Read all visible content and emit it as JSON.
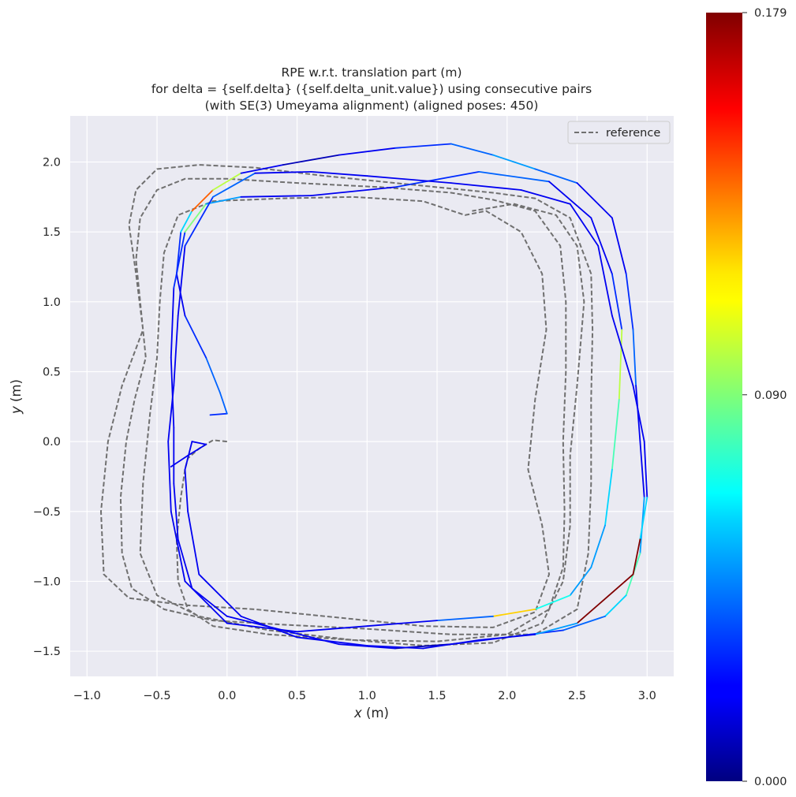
{
  "chart_data": {
    "type": "line",
    "title_lines": [
      "RPE w.r.t. translation part (m)",
      "for delta = {self.delta} ({self.delta_unit.value}) using consecutive pairs",
      "(with SE(3) Umeyama alignment) (aligned poses: 450)"
    ],
    "xlabel_var": "x",
    "xlabel_unit": " (m)",
    "ylabel_var": "y",
    "ylabel_unit": " (m)",
    "xlim": [
      -1.12,
      3.19
    ],
    "ylim": [
      -1.68,
      2.33
    ],
    "xticks": [
      -1.0,
      -0.5,
      0.0,
      0.5,
      1.0,
      1.5,
      2.0,
      2.5,
      3.0
    ],
    "yticks": [
      -1.5,
      -1.0,
      -0.5,
      0.0,
      0.5,
      1.0,
      1.5,
      2.0
    ],
    "xtick_labels": [
      "−1.0",
      "−0.5",
      "0.0",
      "0.5",
      "1.0",
      "1.5",
      "2.0",
      "2.5",
      "3.0"
    ],
    "ytick_labels": [
      "−1.5",
      "−1.0",
      "−0.5",
      "0.0",
      "0.5",
      "1.0",
      "1.5",
      "2.0"
    ],
    "grid": true,
    "legend": {
      "position": "top-right",
      "entries": [
        "reference"
      ]
    },
    "colorbar": {
      "colormap": "jet",
      "min": 0.0,
      "max": 0.179,
      "tick_values": [
        0.0,
        0.09,
        0.179
      ],
      "tick_labels": [
        "0.000",
        "0.090",
        "0.179"
      ]
    },
    "series": [
      {
        "name": "reference",
        "style": "dashed",
        "color": "#707070",
        "points": [
          [
            0.0,
            0.0
          ],
          [
            -0.1,
            0.01
          ],
          [
            -0.2,
            -0.05
          ],
          [
            -0.28,
            -0.12
          ],
          [
            -0.3,
            -0.2
          ],
          [
            -0.33,
            -0.4
          ],
          [
            -0.36,
            -0.7
          ],
          [
            -0.35,
            -1.0
          ],
          [
            -0.28,
            -1.2
          ],
          [
            -0.1,
            -1.32
          ],
          [
            0.3,
            -1.38
          ],
          [
            0.9,
            -1.42
          ],
          [
            1.5,
            -1.43
          ],
          [
            2.0,
            -1.38
          ],
          [
            2.3,
            -1.2
          ],
          [
            2.4,
            -0.9
          ],
          [
            2.41,
            -0.5
          ],
          [
            2.4,
            0.0
          ],
          [
            2.42,
            0.5
          ],
          [
            2.42,
            1.0
          ],
          [
            2.38,
            1.4
          ],
          [
            2.2,
            1.65
          ],
          [
            1.9,
            1.73
          ],
          [
            1.6,
            1.78
          ],
          [
            1.1,
            1.82
          ],
          [
            0.5,
            1.85
          ],
          [
            0.0,
            1.88
          ],
          [
            -0.3,
            1.88
          ],
          [
            -0.5,
            1.8
          ],
          [
            -0.62,
            1.6
          ],
          [
            -0.65,
            1.3
          ],
          [
            -0.62,
            1.0
          ],
          [
            -0.58,
            0.6
          ],
          [
            -0.66,
            0.3
          ],
          [
            -0.72,
            0.0
          ],
          [
            -0.76,
            -0.4
          ],
          [
            -0.75,
            -0.8
          ],
          [
            -0.68,
            -1.05
          ],
          [
            -0.45,
            -1.2
          ],
          [
            -0.1,
            -1.28
          ],
          [
            0.4,
            -1.31
          ],
          [
            1.0,
            -1.34
          ],
          [
            1.6,
            -1.38
          ],
          [
            2.2,
            -1.38
          ],
          [
            2.5,
            -1.2
          ],
          [
            2.58,
            -0.8
          ],
          [
            2.6,
            -0.3
          ],
          [
            2.6,
            0.3
          ],
          [
            2.61,
            0.8
          ],
          [
            2.6,
            1.2
          ],
          [
            2.45,
            1.6
          ],
          [
            2.2,
            1.74
          ],
          [
            1.9,
            1.78
          ],
          [
            1.3,
            1.84
          ],
          [
            0.7,
            1.9
          ],
          [
            0.2,
            1.96
          ],
          [
            -0.2,
            1.98
          ],
          [
            -0.5,
            1.95
          ],
          [
            -0.65,
            1.8
          ],
          [
            -0.7,
            1.55
          ],
          [
            -0.65,
            1.2
          ],
          [
            -0.6,
            0.8
          ],
          [
            -0.75,
            0.4
          ],
          [
            -0.85,
            0.0
          ],
          [
            -0.9,
            -0.5
          ],
          [
            -0.88,
            -0.95
          ],
          [
            -0.7,
            -1.12
          ],
          [
            -0.3,
            -1.17
          ],
          [
            0.2,
            -1.2
          ],
          [
            0.8,
            -1.26
          ],
          [
            1.4,
            -1.32
          ],
          [
            1.9,
            -1.33
          ],
          [
            2.2,
            -1.22
          ],
          [
            2.3,
            -0.95
          ],
          [
            2.25,
            -0.6
          ],
          [
            2.15,
            -0.2
          ],
          [
            2.2,
            0.3
          ],
          [
            2.28,
            0.8
          ],
          [
            2.25,
            1.2
          ],
          [
            2.1,
            1.5
          ],
          [
            1.85,
            1.65
          ],
          [
            1.7,
            1.62
          ],
          [
            1.4,
            1.72
          ],
          [
            0.9,
            1.75
          ],
          [
            0.4,
            1.74
          ],
          [
            -0.1,
            1.72
          ],
          [
            -0.35,
            1.62
          ],
          [
            -0.45,
            1.35
          ],
          [
            -0.48,
            1.0
          ],
          [
            -0.5,
            0.6
          ],
          [
            -0.55,
            0.2
          ],
          [
            -0.6,
            -0.3
          ],
          [
            -0.62,
            -0.8
          ],
          [
            -0.5,
            -1.1
          ],
          [
            -0.2,
            -1.25
          ],
          [
            0.3,
            -1.35
          ],
          [
            0.9,
            -1.42
          ],
          [
            1.4,
            -1.46
          ],
          [
            1.9,
            -1.44
          ],
          [
            2.25,
            -1.3
          ],
          [
            2.4,
            -1.0
          ],
          [
            2.45,
            -0.6
          ],
          [
            2.45,
            -0.1
          ],
          [
            2.5,
            0.4
          ],
          [
            2.55,
            1.0
          ],
          [
            2.5,
            1.4
          ],
          [
            2.35,
            1.62
          ],
          [
            2.05,
            1.7
          ],
          [
            1.75,
            1.65
          ]
        ]
      },
      {
        "name": "",
        "style": "colormap",
        "color_by": "error",
        "points": [
          [
            -0.12,
            0.19,
            0.02
          ],
          [
            0.0,
            0.2,
            0.03
          ],
          [
            -0.05,
            0.35,
            0.04
          ],
          [
            -0.15,
            0.6,
            0.04
          ],
          [
            -0.3,
            0.9,
            0.03
          ],
          [
            -0.36,
            1.2,
            0.02
          ],
          [
            -0.33,
            1.5,
            0.03
          ],
          [
            -0.25,
            1.65,
            0.06
          ],
          [
            -0.1,
            1.8,
            0.14
          ],
          [
            0.1,
            1.92,
            0.1
          ],
          [
            0.4,
            1.98,
            0.02
          ],
          [
            0.8,
            2.05,
            0.01
          ],
          [
            1.2,
            2.1,
            0.02
          ],
          [
            1.6,
            2.13,
            0.03
          ],
          [
            1.9,
            2.05,
            0.04
          ],
          [
            2.2,
            1.95,
            0.05
          ],
          [
            2.5,
            1.85,
            0.04
          ],
          [
            2.75,
            1.6,
            0.02
          ],
          [
            2.85,
            1.2,
            0.02
          ],
          [
            2.9,
            0.8,
            0.03
          ],
          [
            2.92,
            0.4,
            0.04
          ],
          [
            2.95,
            0.0,
            0.02
          ],
          [
            2.98,
            -0.4,
            0.02
          ],
          [
            2.95,
            -0.8,
            0.05
          ],
          [
            2.85,
            -1.1,
            0.08
          ],
          [
            2.7,
            -1.25,
            0.06
          ],
          [
            2.4,
            -1.35,
            0.04
          ],
          [
            2.0,
            -1.4,
            0.03
          ],
          [
            1.6,
            -1.45,
            0.02
          ],
          [
            1.2,
            -1.48,
            0.01
          ],
          [
            0.8,
            -1.45,
            0.02
          ],
          [
            0.4,
            -1.35,
            0.02
          ],
          [
            0.0,
            -1.25,
            0.02
          ],
          [
            -0.25,
            -1.05,
            0.02
          ],
          [
            -0.35,
            -0.7,
            0.02
          ],
          [
            -0.38,
            -0.3,
            0.02
          ],
          [
            -0.38,
            0.1,
            0.02
          ],
          [
            -0.4,
            0.6,
            0.02
          ],
          [
            -0.38,
            1.1,
            0.02
          ],
          [
            -0.3,
            1.5,
            0.03
          ],
          [
            -0.15,
            1.7,
            0.09
          ],
          [
            0.1,
            1.75,
            0.05
          ],
          [
            0.6,
            1.76,
            0.02
          ],
          [
            1.2,
            1.82,
            0.02
          ],
          [
            1.8,
            1.93,
            0.03
          ],
          [
            2.3,
            1.86,
            0.04
          ],
          [
            2.6,
            1.6,
            0.02
          ],
          [
            2.75,
            1.2,
            0.02
          ],
          [
            2.82,
            0.8,
            0.03
          ],
          [
            2.8,
            0.3,
            0.1
          ],
          [
            2.75,
            -0.2,
            0.08
          ],
          [
            2.7,
            -0.6,
            0.06
          ],
          [
            2.6,
            -0.9,
            0.05
          ],
          [
            2.45,
            -1.1,
            0.05
          ],
          [
            2.2,
            -1.2,
            0.07
          ],
          [
            1.9,
            -1.25,
            0.12
          ],
          [
            1.5,
            -1.28,
            0.04
          ],
          [
            1.0,
            -1.32,
            0.02
          ],
          [
            0.5,
            -1.36,
            0.02
          ],
          [
            0.0,
            -1.3,
            0.02
          ],
          [
            -0.3,
            -1.0,
            0.02
          ],
          [
            -0.4,
            -0.5,
            0.02
          ],
          [
            -0.42,
            0.0,
            0.02
          ],
          [
            -0.38,
            0.4,
            0.02
          ],
          [
            -0.35,
            0.9,
            0.02
          ],
          [
            -0.3,
            1.4,
            0.02
          ],
          [
            -0.1,
            1.75,
            0.03
          ],
          [
            0.2,
            1.92,
            0.04
          ],
          [
            0.6,
            1.93,
            0.02
          ],
          [
            1.0,
            1.9,
            0.02
          ],
          [
            1.6,
            1.85,
            0.02
          ],
          [
            2.1,
            1.8,
            0.02
          ],
          [
            2.45,
            1.7,
            0.02
          ],
          [
            2.65,
            1.4,
            0.02
          ],
          [
            2.75,
            0.9,
            0.02
          ],
          [
            2.9,
            0.4,
            0.02
          ],
          [
            2.98,
            0.0,
            0.02
          ],
          [
            3.0,
            -0.4,
            0.02
          ],
          [
            2.95,
            -0.7,
            0.06
          ],
          [
            2.9,
            -0.95,
            0.179
          ],
          [
            2.5,
            -1.3,
            0.179
          ],
          [
            2.2,
            -1.38,
            0.05
          ],
          [
            1.8,
            -1.42,
            0.02
          ],
          [
            1.4,
            -1.48,
            0.02
          ],
          [
            1.0,
            -1.46,
            0.02
          ],
          [
            0.5,
            -1.4,
            0.02
          ],
          [
            0.1,
            -1.25,
            0.02
          ],
          [
            -0.2,
            -0.95,
            0.02
          ],
          [
            -0.28,
            -0.5,
            0.02
          ],
          [
            -0.3,
            -0.2,
            0.02
          ],
          [
            -0.25,
            0.0,
            0.02
          ],
          [
            -0.15,
            -0.02,
            0.02
          ],
          [
            -0.28,
            -0.1,
            0.02
          ],
          [
            -0.4,
            -0.18,
            0.02
          ]
        ]
      }
    ]
  }
}
